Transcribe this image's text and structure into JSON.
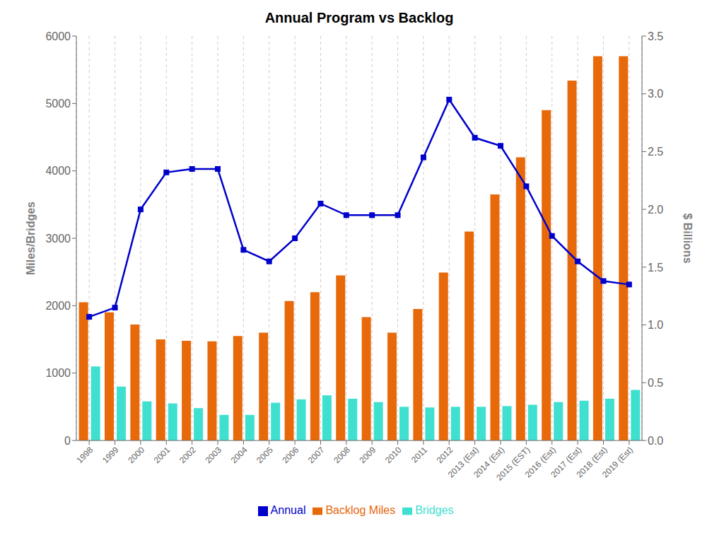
{
  "chart_data": {
    "type": "bar",
    "title": "Annual Program vs Backlog",
    "categories": [
      "1998",
      "1999",
      "2000",
      "2001",
      "2002",
      "2003",
      "2004",
      "2005",
      "2006",
      "2007",
      "2008",
      "2009",
      "2010",
      "2011",
      "2012",
      "2013 (Est)",
      "2014 (Est)",
      "2015 (EST)",
      "2016 (Est)",
      "2017 (Est)",
      "2018 (Est)",
      "2019 (Est)"
    ],
    "series": [
      {
        "name": "Backlog Miles",
        "type": "bar",
        "color": "#E8690A",
        "values": [
          2050,
          1900,
          1720,
          1500,
          1480,
          1470,
          1550,
          1600,
          2070,
          2200,
          2450,
          1830,
          1600,
          1950,
          2490,
          3100,
          3650,
          4200,
          4900,
          5340,
          5700,
          5700
        ]
      },
      {
        "name": "Bridges",
        "type": "bar",
        "color": "#40E0D0",
        "values": [
          1100,
          800,
          580,
          550,
          480,
          380,
          380,
          560,
          610,
          670,
          620,
          570,
          500,
          490,
          500,
          500,
          510,
          530,
          570,
          590,
          620,
          750
        ]
      },
      {
        "name": "Annual",
        "type": "line",
        "color": "#0000CC",
        "marker": "square",
        "axis": "y2",
        "values": [
          1.07,
          1.15,
          2.0,
          2.32,
          2.35,
          2.35,
          1.65,
          1.55,
          1.75,
          2.05,
          1.95,
          1.95,
          1.95,
          2.45,
          2.95,
          2.62,
          2.55,
          2.2,
          1.77,
          1.55,
          1.38,
          1.35
        ]
      }
    ],
    "ylabel": "Miles/Bridges",
    "y2label": "$ Billions",
    "ylim": [
      0,
      6000
    ],
    "yticks": [
      0,
      1000,
      2000,
      3000,
      4000,
      5000,
      6000
    ],
    "y2lim": [
      0,
      3.5
    ],
    "y2ticks": [
      {
        "value": 0,
        "label": "0.0"
      },
      0.5,
      {
        "value": 1,
        "label": "1.0"
      },
      1.5,
      {
        "value": 2,
        "label": "2.0"
      },
      2.5,
      {
        "value": 3,
        "label": "3.0"
      },
      3.5
    ],
    "grid": "x",
    "legend": "bottom"
  }
}
